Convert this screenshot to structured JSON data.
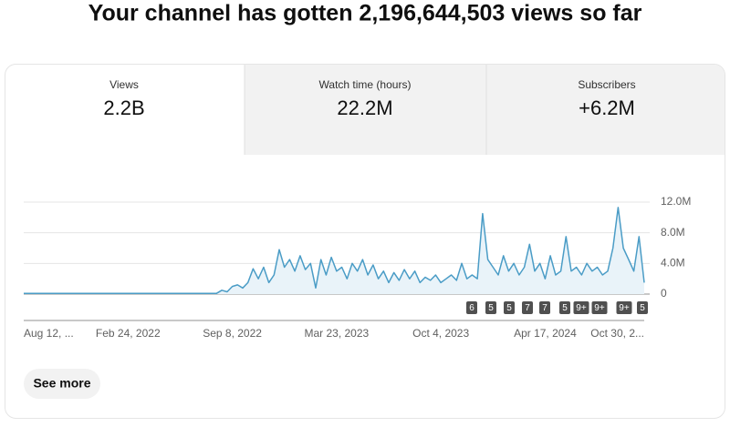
{
  "header": {
    "title": "Your channel has gotten 2,196,644,503 views so far"
  },
  "tabs": [
    {
      "label": "Views",
      "value": "2.2B"
    },
    {
      "label": "Watch time (hours)",
      "value": "22.2M"
    },
    {
      "label": "Subscribers",
      "value": "+6.2M"
    }
  ],
  "chart_data": {
    "type": "line",
    "color": "#4a9cc6",
    "categories": [
      "Aug 12, ...",
      null,
      null,
      null,
      null,
      null,
      null,
      null,
      null,
      null,
      null,
      null,
      null,
      null,
      null,
      null,
      null,
      null,
      null,
      null,
      "Feb 24, 2022",
      null,
      null,
      null,
      null,
      null,
      null,
      null,
      null,
      null,
      null,
      null,
      null,
      null,
      null,
      null,
      null,
      null,
      null,
      null,
      "Sep 8, 2022",
      null,
      null,
      null,
      null,
      null,
      null,
      null,
      null,
      null,
      null,
      null,
      null,
      null,
      null,
      null,
      null,
      null,
      null,
      null,
      "Mar 23, 2023",
      null,
      null,
      null,
      null,
      null,
      null,
      null,
      null,
      null,
      null,
      null,
      null,
      null,
      null,
      null,
      null,
      null,
      null,
      null,
      "Oct 4, 2023",
      null,
      null,
      null,
      null,
      null,
      null,
      null,
      null,
      null,
      null,
      null,
      null,
      null,
      null,
      null,
      null,
      null,
      null,
      null,
      "Apr 17, 2024",
      null,
      null,
      null,
      null,
      null,
      null,
      null,
      null,
      null,
      null,
      null,
      null,
      null,
      null,
      null,
      null,
      null,
      null,
      "Oct 30, 2..."
    ],
    "values": [
      100000,
      100000,
      100000,
      100000,
      100000,
      100000,
      100000,
      100000,
      100000,
      100000,
      100000,
      100000,
      100000,
      100000,
      100000,
      100000,
      100000,
      100000,
      100000,
      100000,
      100000,
      100000,
      100000,
      100000,
      100000,
      100000,
      100000,
      100000,
      100000,
      100000,
      100000,
      100000,
      100000,
      100000,
      100000,
      100000,
      100000,
      100000,
      500000,
      300000,
      1000000,
      1200000,
      800000,
      1500000,
      3300000,
      2000000,
      3500000,
      1500000,
      2500000,
      5800000,
      3500000,
      4500000,
      3000000,
      5000000,
      3200000,
      4000000,
      800000,
      4500000,
      2500000,
      4800000,
      3000000,
      3500000,
      2000000,
      4000000,
      3000000,
      4500000,
      2500000,
      3800000,
      2000000,
      3000000,
      1500000,
      2800000,
      1800000,
      3200000,
      2000000,
      3000000,
      1500000,
      2200000,
      1800000,
      2500000,
      1500000,
      2000000,
      2500000,
      1800000,
      4000000,
      2000000,
      2500000,
      2000000,
      10500000,
      4500000,
      3500000,
      2500000,
      5000000,
      3000000,
      4000000,
      2500000,
      3500000,
      6500000,
      3000000,
      4000000,
      2000000,
      5000000,
      2500000,
      3000000,
      7500000,
      3000000,
      3500000,
      2500000,
      4000000,
      3000000,
      3500000,
      2500000,
      3000000,
      6000000,
      11300000,
      6000000,
      4500000,
      3000000,
      7500000,
      1500000
    ],
    "ylim": [
      0,
      12000000
    ],
    "yticks": [
      0,
      {
        "value": 4000000,
        "label": "4.0M"
      },
      {
        "value": 8000000,
        "label": "8.0M"
      },
      {
        "value": 12000000,
        "label": "12.0M"
      }
    ],
    "grid": true
  },
  "markers": [
    "6",
    "5",
    "5",
    "7",
    "7",
    "5",
    "9+",
    "9+",
    "9+",
    "5"
  ],
  "button": {
    "label": "See more"
  }
}
